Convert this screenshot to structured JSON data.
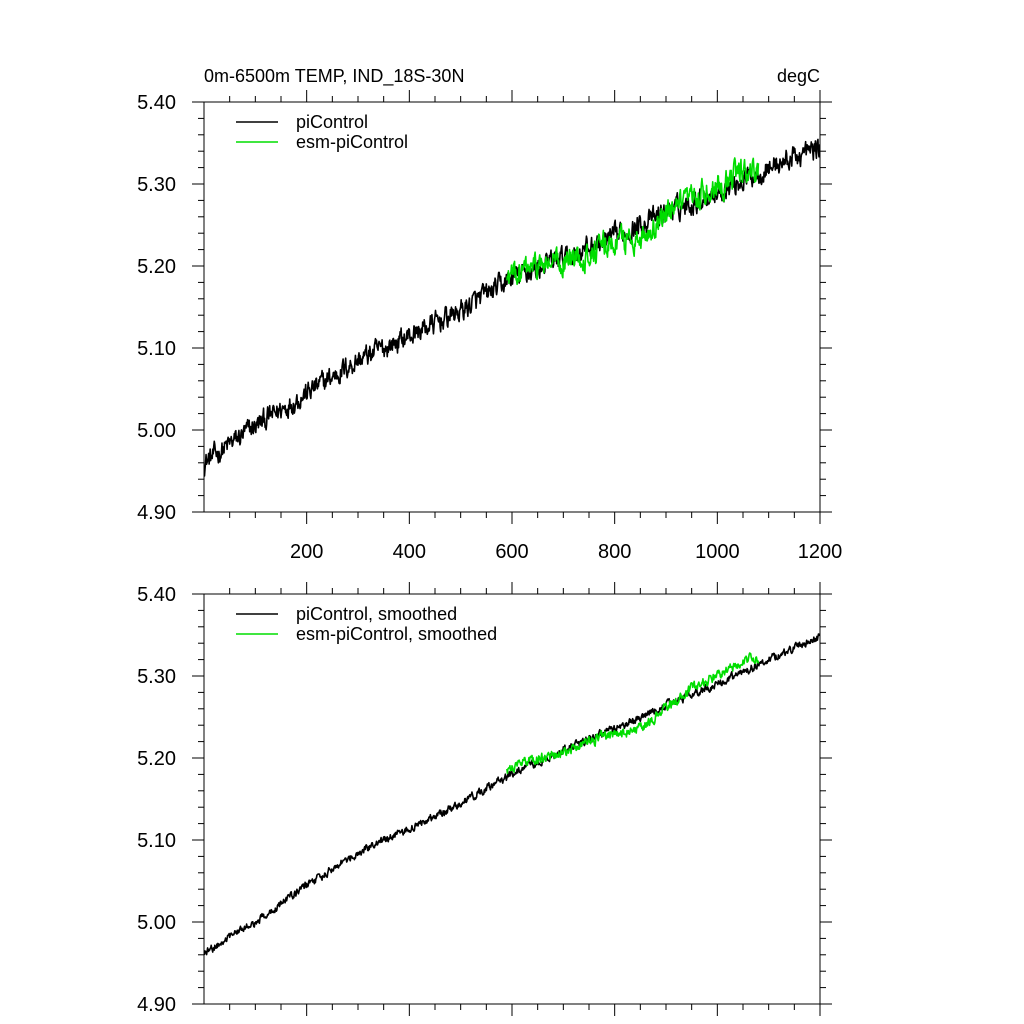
{
  "header": {
    "title": "0m-6500m TEMP, IND_18S-30N",
    "units": "degC"
  },
  "colors": {
    "picontrol": "#000000",
    "esm_picontrol": "#00dd00"
  },
  "chart_data": [
    {
      "type": "line",
      "panel": "top",
      "xlim": [
        0,
        1200
      ],
      "ylim": [
        4.9,
        5.4
      ],
      "xticks": [
        200,
        400,
        600,
        800,
        1000,
        1200
      ],
      "xtick_labels": [
        "200",
        "400",
        "600",
        "800",
        "1000",
        "1200"
      ],
      "yticks": [
        4.9,
        5.0,
        5.1,
        5.2,
        5.3,
        5.4
      ],
      "ytick_labels": [
        "4.90",
        "5.00",
        "5.10",
        "5.20",
        "5.30",
        "5.40"
      ],
      "legend": "top-left",
      "series": [
        {
          "name": "piControl",
          "color": "#000000",
          "x_start": 0,
          "x_end": 1200,
          "y_start": 4.96,
          "y_end": 5.35,
          "noise": 0.011,
          "trend_x": [
            0,
            100,
            200,
            300,
            400,
            500,
            600,
            700,
            800,
            900,
            1000,
            1100,
            1200
          ],
          "trend_y": [
            4.96,
            5.005,
            5.045,
            5.085,
            5.115,
            5.145,
            5.185,
            5.21,
            5.235,
            5.265,
            5.29,
            5.32,
            5.345
          ]
        },
        {
          "name": "esm-piControl",
          "color": "#00dd00",
          "x_start": 590,
          "x_end": 1080,
          "y_start": 5.18,
          "y_end": 5.32,
          "noise": 0.013,
          "trend_x": [
            590,
            650,
            700,
            750,
            800,
            850,
            900,
            950,
            1000,
            1050,
            1080
          ],
          "trend_y": [
            5.185,
            5.2,
            5.205,
            5.215,
            5.23,
            5.235,
            5.26,
            5.28,
            5.3,
            5.315,
            5.32
          ]
        }
      ]
    },
    {
      "type": "line",
      "panel": "bottom",
      "xlim": [
        0,
        1200
      ],
      "ylim": [
        4.9,
        5.4
      ],
      "xticks": [
        200,
        400,
        600,
        800,
        1000,
        1200
      ],
      "yticks": [
        4.9,
        5.0,
        5.1,
        5.2,
        5.3,
        5.4
      ],
      "ytick_labels": [
        "4.90",
        "5.00",
        "5.10",
        "5.20",
        "5.30",
        "5.40"
      ],
      "legend": "top-left",
      "series": [
        {
          "name": "piControl, smoothed",
          "color": "#000000",
          "x_start": 0,
          "x_end": 1200,
          "y_start": 4.96,
          "y_end": 5.35,
          "noise": 0.004,
          "trend_x": [
            0,
            100,
            200,
            300,
            400,
            500,
            600,
            700,
            800,
            900,
            1000,
            1100,
            1200
          ],
          "trend_y": [
            4.962,
            5.0,
            5.045,
            5.085,
            5.115,
            5.145,
            5.18,
            5.21,
            5.235,
            5.265,
            5.29,
            5.32,
            5.348
          ]
        },
        {
          "name": "esm-piControl, smoothed",
          "color": "#00dd00",
          "x_start": 590,
          "x_end": 1080,
          "y_start": 5.18,
          "y_end": 5.32,
          "noise": 0.005,
          "trend_x": [
            590,
            650,
            700,
            750,
            800,
            850,
            900,
            950,
            1000,
            1050,
            1080
          ],
          "trend_y": [
            5.185,
            5.2,
            5.205,
            5.22,
            5.23,
            5.235,
            5.262,
            5.285,
            5.3,
            5.318,
            5.322
          ]
        }
      ]
    }
  ]
}
